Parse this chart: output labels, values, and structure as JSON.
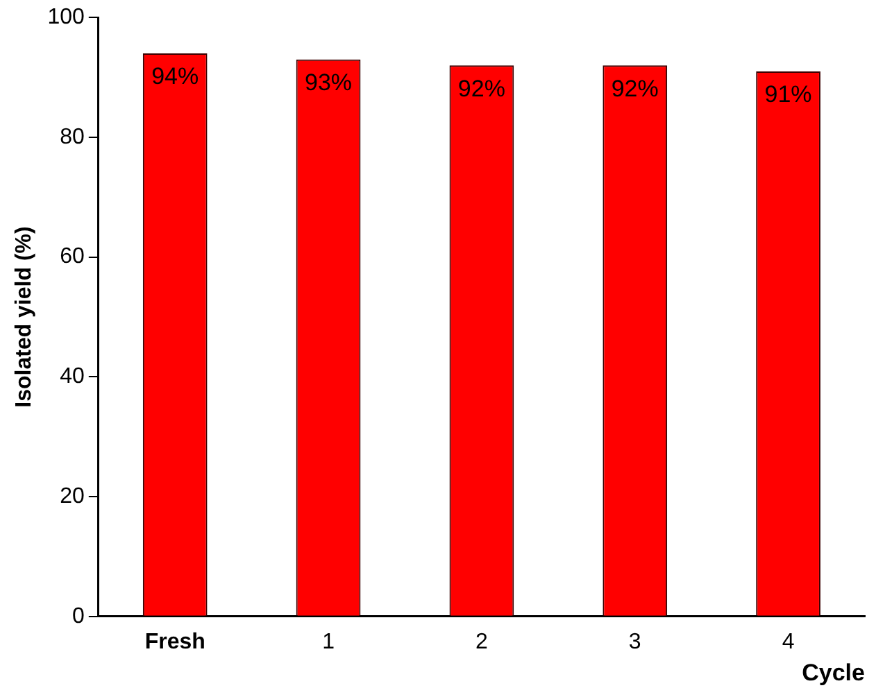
{
  "chart_data": {
    "type": "bar",
    "xlabel": "Cycle",
    "ylabel": "Isolated yield (%)",
    "categories": [
      "Fresh",
      "1",
      "2",
      "3",
      "4"
    ],
    "values": [
      94,
      93,
      92,
      92,
      91
    ],
    "value_labels": [
      "94%",
      "93%",
      "92%",
      "92%",
      "91%"
    ],
    "color": "#ff0000",
    "ylim": [
      0,
      100
    ],
    "yticks": [
      0,
      20,
      40,
      60,
      80,
      100
    ],
    "grid": false,
    "legend": false
  }
}
